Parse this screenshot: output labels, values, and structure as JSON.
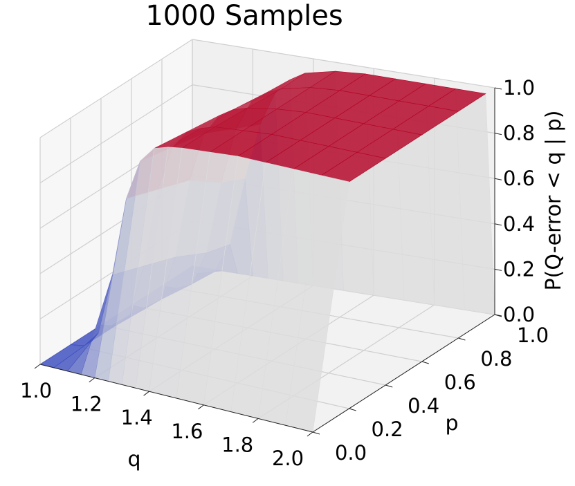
{
  "chart_data": {
    "type": "surface-3d",
    "title": "1000 Samples",
    "xlabel": "q",
    "ylabel": "p",
    "zlabel": "P(Q-error < q | p)",
    "x_ticks": [
      "1.0",
      "1.2",
      "1.4",
      "1.6",
      "1.8",
      "2.0"
    ],
    "y_ticks": [
      "0.0",
      "0.2",
      "0.4",
      "0.6",
      "0.8",
      "1.0"
    ],
    "z_ticks": [
      "0.0",
      "0.2",
      "0.4",
      "0.6",
      "0.8",
      "1.0"
    ],
    "xlim": [
      1.0,
      2.0
    ],
    "ylim": [
      0.0,
      1.0
    ],
    "zlim": [
      0.0,
      1.0
    ],
    "colormap": "coolwarm",
    "colormap_low": "#3b4cc0",
    "colormap_mid": "#dddddd",
    "colormap_high": "#b40426",
    "grid": true,
    "q": [
      1.0,
      1.05,
      1.1,
      1.15,
      1.2,
      1.25,
      1.3,
      1.35,
      1.4,
      1.5,
      1.6,
      1.7,
      1.8,
      1.9,
      2.0
    ],
    "p": [
      0.0,
      0.2,
      0.4,
      0.6,
      0.8,
      0.95,
      1.0
    ],
    "z": [
      [
        0.0,
        0.0,
        0.0,
        0.0,
        0.0,
        0.0,
        0.0,
        0.0,
        0.0,
        0.0,
        0.0,
        0.0,
        0.0,
        0.0,
        0.0
      ],
      [
        0.0,
        0.01,
        0.08,
        0.35,
        0.7,
        0.88,
        0.95,
        0.97,
        0.98,
        0.99,
        1.0,
        1.0,
        1.0,
        1.0,
        1.0
      ],
      [
        0.0,
        0.01,
        0.07,
        0.3,
        0.65,
        0.85,
        0.93,
        0.96,
        0.98,
        0.99,
        1.0,
        1.0,
        1.0,
        1.0,
        1.0
      ],
      [
        0.0,
        0.0,
        0.05,
        0.25,
        0.6,
        0.82,
        0.91,
        0.95,
        0.97,
        0.99,
        1.0,
        1.0,
        1.0,
        1.0,
        1.0
      ],
      [
        0.0,
        0.0,
        0.03,
        0.18,
        0.5,
        0.75,
        0.88,
        0.93,
        0.96,
        0.99,
        1.0,
        1.0,
        1.0,
        1.0,
        1.0
      ],
      [
        0.0,
        0.0,
        0.02,
        0.15,
        0.45,
        0.7,
        0.85,
        0.92,
        0.96,
        0.99,
        1.0,
        1.0,
        1.0,
        1.0,
        1.0
      ],
      [
        0.0,
        0.0,
        0.0,
        0.0,
        0.0,
        0.0,
        0.0,
        0.0,
        0.0,
        0.0,
        0.0,
        0.0,
        0.0,
        0.0,
        0.0
      ]
    ]
  }
}
